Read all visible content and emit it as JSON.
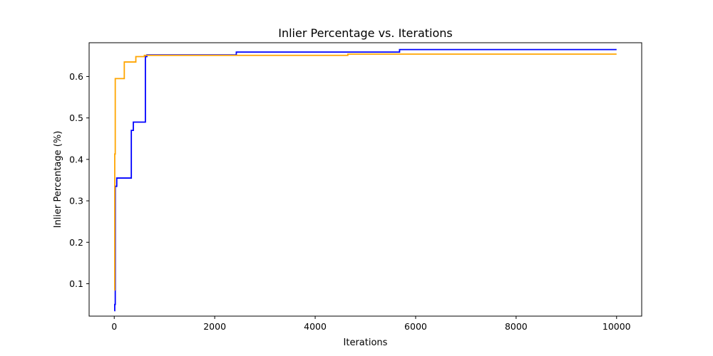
{
  "chart_data": {
    "type": "line",
    "title": "Inlier Percentage vs. Iterations",
    "xlabel": "Iterations",
    "ylabel": "Inlier Percentage (%)",
    "xlim": [
      -500,
      10500
    ],
    "ylim": [
      0.0218,
      0.6815
    ],
    "xticks": [
      0,
      2000,
      4000,
      6000,
      8000,
      10000
    ],
    "yticks": [
      0.1,
      0.2,
      0.3,
      0.4,
      0.5,
      0.6
    ],
    "step": "post",
    "grid": false,
    "legend": "none",
    "series": [
      {
        "color": "#0000ff",
        "x": [
          0,
          10,
          20,
          50,
          340,
          380,
          620,
          650,
          2430,
          5680,
          10000
        ],
        "y": [
          0.035,
          0.05,
          0.335,
          0.355,
          0.47,
          0.49,
          0.648,
          0.652,
          0.659,
          0.665,
          0.665
        ]
      },
      {
        "color": "#ffa500",
        "x": [
          0,
          10,
          20,
          200,
          430,
          600,
          4650,
          10000
        ],
        "y": [
          0.085,
          0.413,
          0.595,
          0.635,
          0.648,
          0.651,
          0.654,
          0.654
        ]
      }
    ]
  }
}
